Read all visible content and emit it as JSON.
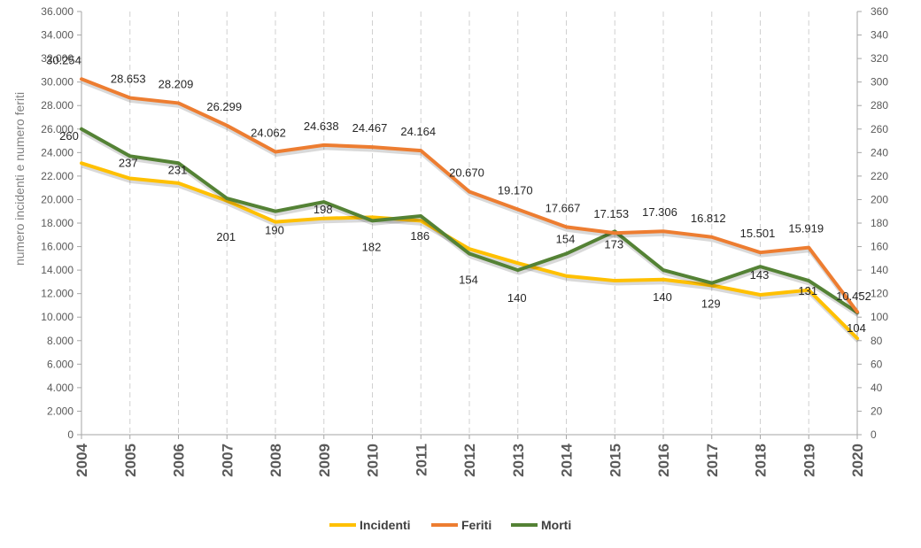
{
  "chart_data": {
    "type": "line",
    "title": "",
    "ylabel": "numero incidenti e numero feriti",
    "xlabel": "",
    "ylim": [
      0,
      36000
    ],
    "y2lim": [
      0,
      360
    ],
    "y_ticks": [
      "0",
      "2.000",
      "4.000",
      "6.000",
      "8.000",
      "10.000",
      "12.000",
      "14.000",
      "16.000",
      "18.000",
      "20.000",
      "22.000",
      "24.000",
      "26.000",
      "28.000",
      "30.000",
      "32.000",
      "34.000",
      "36.000"
    ],
    "y2_ticks": [
      "0",
      "20",
      "40",
      "60",
      "80",
      "100",
      "120",
      "140",
      "160",
      "180",
      "200",
      "220",
      "240",
      "260",
      "280",
      "300",
      "320",
      "340",
      "360"
    ],
    "categories": [
      "2004",
      "2005",
      "2006",
      "2007",
      "2008",
      "2009",
      "2010",
      "2011",
      "2012",
      "2013",
      "2014",
      "2015",
      "2016",
      "2017",
      "2018",
      "2019",
      "2020"
    ],
    "grid": "vertical-dashed",
    "legend_position": "bottom",
    "series": [
      {
        "name": "Incidenti",
        "axis": "left",
        "color": "#FFC000",
        "values": [
          23100,
          21800,
          21400,
          19900,
          18100,
          18400,
          18500,
          18200,
          15800,
          14600,
          13500,
          13100,
          13200,
          12700,
          11900,
          12300,
          8200
        ],
        "labels": []
      },
      {
        "name": "Feriti",
        "axis": "left",
        "color": "#ED7D31",
        "values": [
          30254,
          28653,
          28209,
          26299,
          24062,
          24638,
          24467,
          24164,
          20670,
          19170,
          17667,
          17153,
          17306,
          16812,
          15501,
          15919,
          10452
        ],
        "labels": [
          "30.254",
          "28.653",
          "28.209",
          "26.299",
          "24.062",
          "24.638",
          "24.467",
          "24.164",
          "20.670",
          "19.170",
          "17.667",
          "17.153",
          "17.306",
          "16.812",
          "15.501",
          "15.919",
          "10.452"
        ]
      },
      {
        "name": "Morti",
        "axis": "right",
        "color": "#548235",
        "values": [
          260,
          237,
          231,
          201,
          190,
          198,
          182,
          186,
          154,
          140,
          154,
          173,
          140,
          129,
          143,
          131,
          104
        ],
        "labels": [
          "260",
          "237",
          "231",
          "201",
          "190",
          "198",
          "182",
          "186",
          "154",
          "140",
          "154",
          "173",
          "140",
          "129",
          "143",
          "131",
          "104"
        ]
      }
    ]
  }
}
